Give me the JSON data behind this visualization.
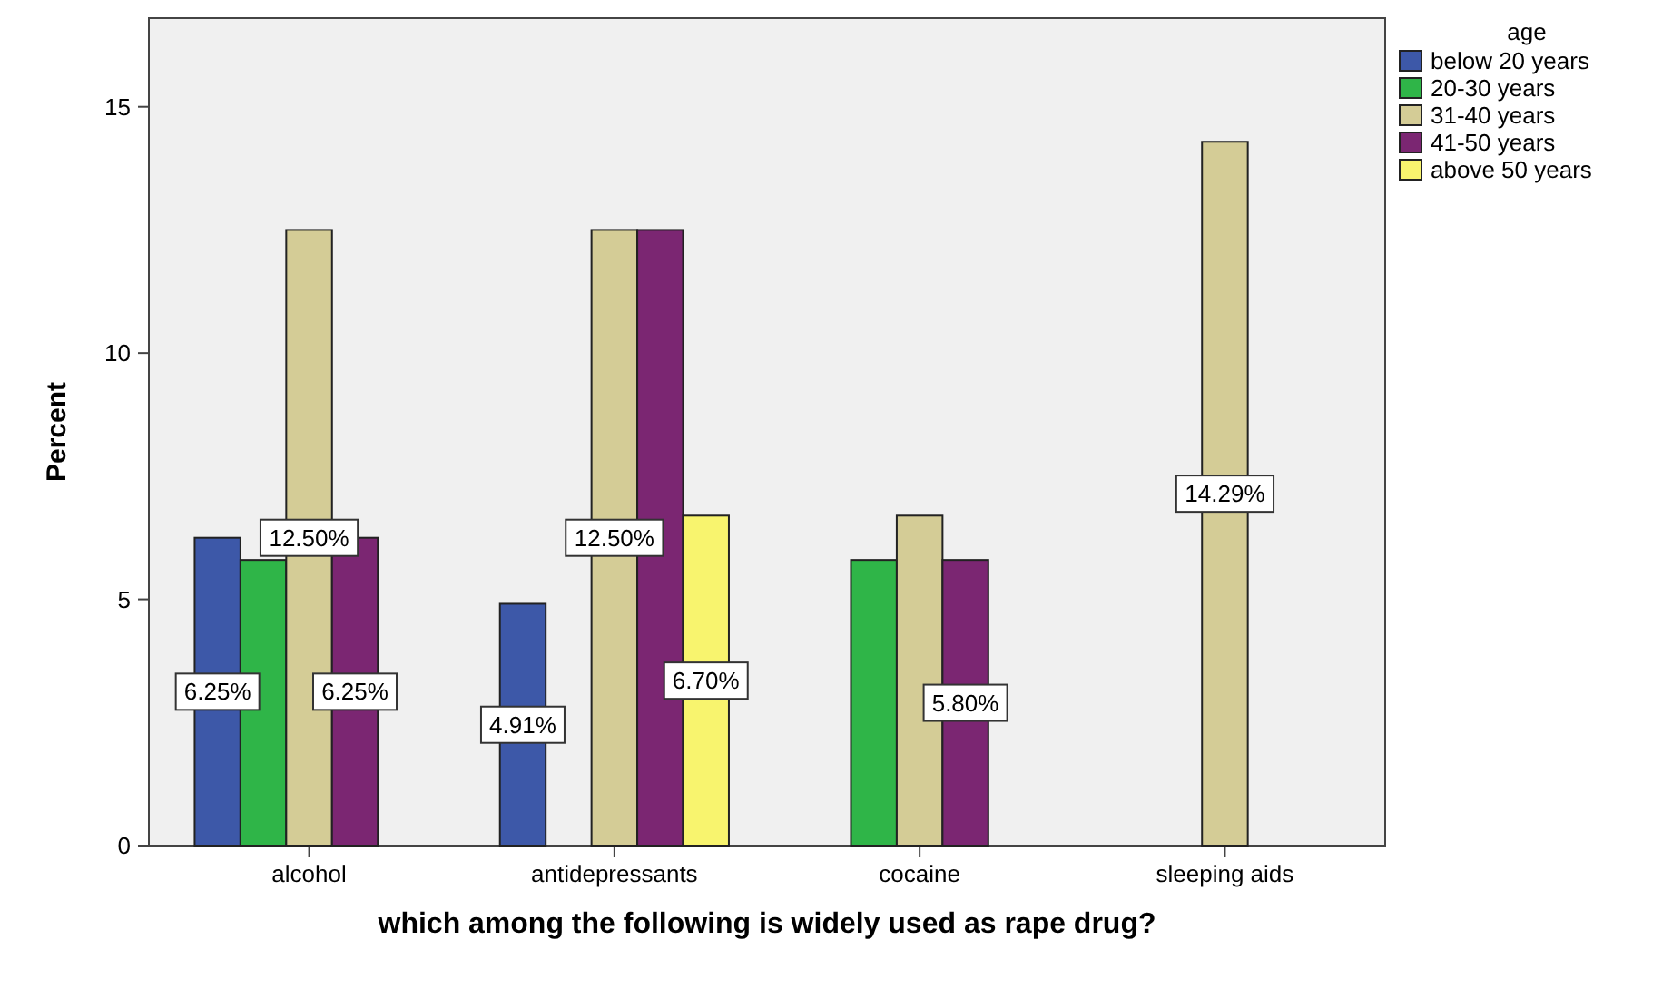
{
  "chart_data": {
    "type": "bar",
    "xlabel": "which among the following is widely used as rape drug?",
    "ylabel": "Percent",
    "legend_title": "age",
    "legend": "top right",
    "categories": [
      "alcohol",
      "antidepressants",
      "cocaine",
      "sleeping aids"
    ],
    "ylim": [
      0,
      16.8
    ],
    "yticks": [
      0,
      5,
      10,
      15
    ],
    "grid": false,
    "series": [
      {
        "name": "below 20 years",
        "color": "#3d58a8",
        "values": [
          6.25,
          4.91,
          null,
          null
        ],
        "value_labels": [
          "6.25%",
          "4.91%",
          null,
          null
        ]
      },
      {
        "name": "20-30 years",
        "color": "#2fb548",
        "values": [
          5.8,
          null,
          5.8,
          null
        ],
        "value_labels": [
          null,
          null,
          null,
          null
        ]
      },
      {
        "name": "31-40 years",
        "color": "#d4cc96",
        "values": [
          12.5,
          12.5,
          6.7,
          14.29
        ],
        "value_labels": [
          "12.50%",
          "12.50%",
          null,
          "14.29%"
        ]
      },
      {
        "name": "41-50 years",
        "color": "#7b2672",
        "values": [
          6.25,
          12.5,
          5.8,
          null
        ],
        "value_labels": [
          "6.25%",
          null,
          "5.80%",
          null
        ]
      },
      {
        "name": "above 50 years",
        "color": "#f8f46e",
        "values": [
          null,
          6.7,
          null,
          null
        ],
        "value_labels": [
          null,
          "6.70%",
          null,
          null
        ]
      }
    ]
  }
}
